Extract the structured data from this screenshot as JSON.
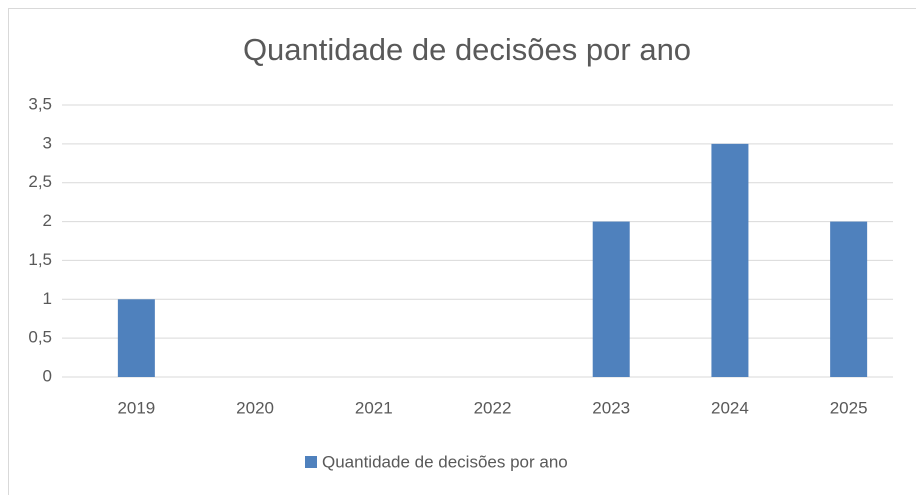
{
  "chart_data": {
    "type": "bar",
    "title": "Quantidade de decisões por ano",
    "categories": [
      "2019",
      "2020",
      "2021",
      "2022",
      "2023",
      "2024",
      "2025"
    ],
    "series": [
      {
        "name": "Quantidade de decisões por ano",
        "color": "#4f81bd",
        "values": [
          1,
          0,
          0,
          0,
          2,
          3,
          2
        ]
      }
    ],
    "ylim": [
      0,
      3.5
    ],
    "yticks": [
      0,
      {
        "value": 0.5,
        "label": "0,5"
      },
      1,
      {
        "value": 1.5,
        "label": "1,5"
      },
      2,
      {
        "value": 2.5,
        "label": "2,5"
      },
      3,
      {
        "value": 3.5,
        "label": "3,5"
      }
    ],
    "grid": true,
    "legend": "bottom"
  }
}
